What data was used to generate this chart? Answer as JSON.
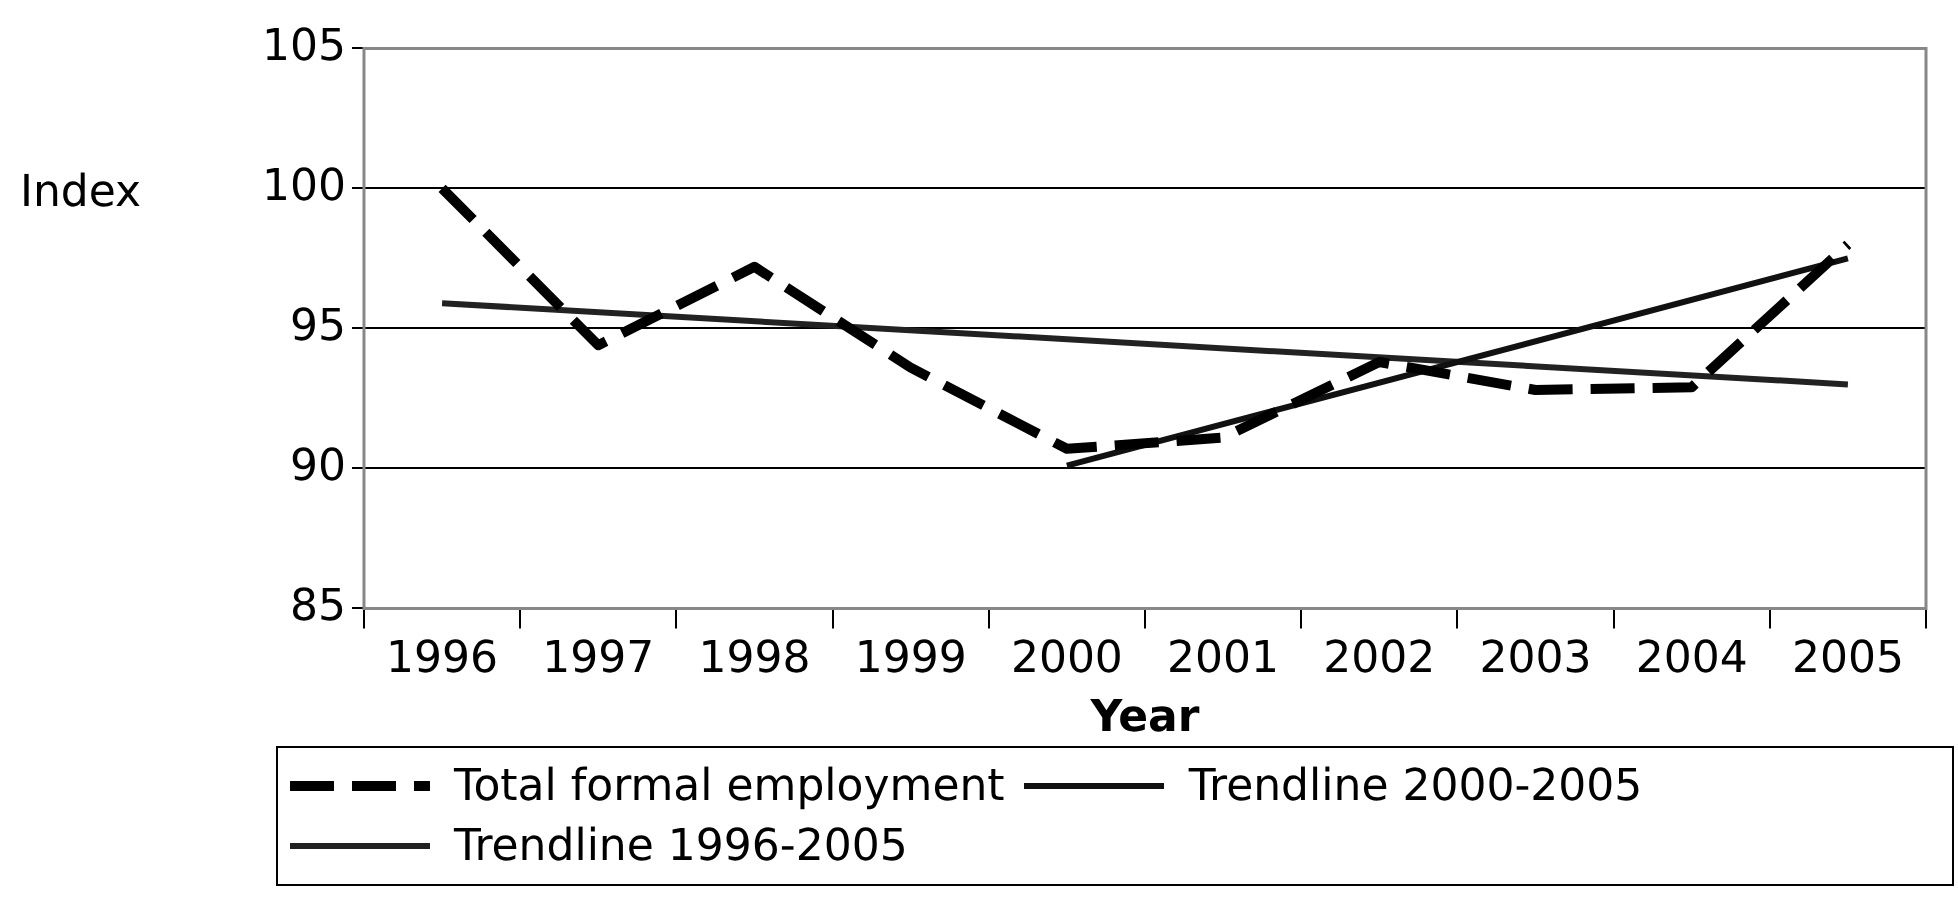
{
  "chart_data": {
    "type": "line",
    "xlabel": "Year",
    "ylabel": "Index",
    "categories": [
      "1996",
      "1997",
      "1998",
      "1999",
      "2000",
      "2001",
      "2002",
      "2003",
      "2004",
      "2005"
    ],
    "series": [
      {
        "name": "Total formal employment",
        "color": "#000000",
        "line_style": "dashed",
        "values": [
          100,
          94.4,
          97.2,
          93.6,
          90.7,
          91.1,
          93.8,
          92.8,
          92.9,
          98.0
        ]
      },
      {
        "name": "Trendline 2000-2005",
        "color": "#111111",
        "line_style": "solid",
        "values": [
          null,
          null,
          null,
          null,
          90.1,
          null,
          null,
          null,
          null,
          97.5
        ]
      },
      {
        "name": "Trendline 1996-2005",
        "color": "#222222",
        "line_style": "solid",
        "values": [
          95.9,
          null,
          null,
          null,
          null,
          null,
          null,
          null,
          null,
          93.0
        ]
      }
    ],
    "ylim": [
      85,
      105
    ],
    "yticks": [
      85,
      90,
      95,
      100,
      105
    ],
    "grid": "y",
    "legend": "bottom",
    "marker": "none"
  }
}
